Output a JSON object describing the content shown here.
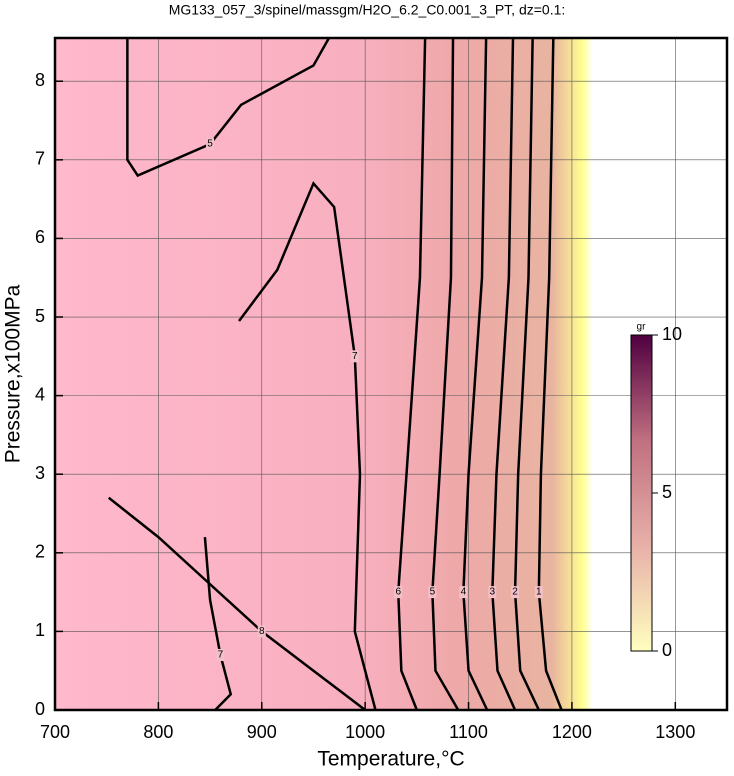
{
  "chart_data": {
    "type": "contour",
    "title": "MG133_057_3/spinel/massgm/H2O_6.2_C0.001_3_PT, dz=0.1:",
    "x_label": "Temperature,°C",
    "y_label": "Pressure,x100MPa",
    "xlim": [
      700,
      1350
    ],
    "ylim": [
      0,
      8.55
    ],
    "xticks": [
      700,
      800,
      900,
      1000,
      1100,
      1200,
      1300
    ],
    "yticks": [
      0,
      1,
      2,
      3,
      4,
      5,
      6,
      7,
      8
    ],
    "grid": true,
    "colorbar": {
      "label": "gr",
      "lim": [
        0,
        10
      ],
      "ticks": [
        0,
        5,
        10
      ],
      "colormap": [
        "#ffffc0",
        "#e8b0a8",
        "#c07080",
        "#500040"
      ]
    },
    "contours": [
      {
        "level": 1,
        "x": [
          1182,
          1178,
          1170,
          1168,
          1175,
          1190
        ],
        "y": [
          8.55,
          5.5,
          3,
          1.5,
          0.5,
          0
        ]
      },
      {
        "level": 2,
        "x": [
          1162,
          1158,
          1148,
          1145,
          1150,
          1168
        ],
        "y": [
          8.55,
          5.5,
          3,
          1.5,
          0.5,
          0
        ]
      },
      {
        "level": 3,
        "x": [
          1143,
          1139,
          1127,
          1123,
          1128,
          1145
        ],
        "y": [
          8.55,
          5.5,
          3,
          1.5,
          0.5,
          0
        ]
      },
      {
        "level": 4,
        "x": [
          1117,
          1113,
          1100,
          1095,
          1100,
          1118
        ],
        "y": [
          8.55,
          5.5,
          3,
          1.5,
          0.5,
          0
        ]
      },
      {
        "level": 5,
        "x": [
          1085,
          1083,
          1072,
          1065,
          1068,
          1090
        ],
        "y": [
          8.55,
          5.5,
          3,
          1.5,
          0.5,
          0
        ]
      },
      {
        "level": 6,
        "x": [
          1058,
          1053,
          1040,
          1032,
          1035,
          1050
        ],
        "y": [
          8.55,
          5.5,
          3,
          1.5,
          0.5,
          0
        ]
      },
      {
        "level": 7,
        "x": [
          878,
          915,
          950,
          970,
          990,
          995,
          990,
          1010
        ],
        "y": [
          4.95,
          5.6,
          6.7,
          6.4,
          4.5,
          3,
          1,
          0
        ]
      },
      {
        "level": 8,
        "x": [
          752,
          800,
          850,
          900,
          950,
          980,
          1000
        ],
        "y": [
          2.7,
          2.2,
          1.6,
          1.0,
          0.5,
          0.2,
          0
        ]
      },
      {
        "level": 7,
        "x": [
          845,
          850,
          860,
          870,
          855
        ],
        "y": [
          2.2,
          1.4,
          0.7,
          0.2,
          0
        ]
      },
      {
        "level": 5,
        "x": [
          770,
          770,
          780,
          850,
          880,
          950,
          965
        ],
        "y": [
          8.55,
          7.0,
          6.8,
          7.2,
          7.7,
          8.2,
          8.55
        ]
      }
    ]
  }
}
